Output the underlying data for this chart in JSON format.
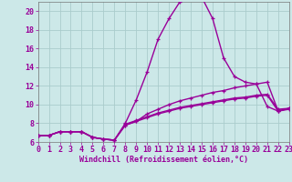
{
  "background_color": "#cce8e8",
  "grid_color": "#aacccc",
  "line_color": "#990099",
  "xlabel": "Windchill (Refroidissement éolien,°C)",
  "xlim": [
    0,
    23
  ],
  "ylim": [
    6,
    21
  ],
  "yticks": [
    6,
    8,
    10,
    12,
    14,
    16,
    18,
    20
  ],
  "xticks": [
    0,
    1,
    2,
    3,
    4,
    5,
    6,
    7,
    8,
    9,
    10,
    11,
    12,
    13,
    14,
    15,
    16,
    17,
    18,
    19,
    20,
    21,
    22,
    23
  ],
  "curve1_x": [
    0,
    1,
    2,
    3,
    4,
    5,
    6,
    7,
    8,
    9,
    10,
    11,
    12,
    13,
    14,
    15,
    16,
    17,
    18,
    19,
    20,
    21,
    22,
    23
  ],
  "curve1_y": [
    6.7,
    6.7,
    7.1,
    7.1,
    7.1,
    6.5,
    6.3,
    6.2,
    7.8,
    8.2,
    8.6,
    9.0,
    9.3,
    9.6,
    9.8,
    10.0,
    10.2,
    10.4,
    10.6,
    10.7,
    10.9,
    11.0,
    9.3,
    9.5
  ],
  "curve2_x": [
    0,
    1,
    2,
    3,
    4,
    5,
    6,
    7,
    8,
    9,
    10,
    11,
    12,
    13,
    14,
    15,
    16,
    17,
    18,
    19,
    20,
    21,
    22,
    23
  ],
  "curve2_y": [
    6.7,
    6.7,
    7.1,
    7.1,
    7.1,
    6.5,
    6.3,
    6.2,
    7.8,
    8.2,
    9.0,
    9.5,
    10.0,
    10.4,
    10.7,
    11.0,
    11.3,
    11.5,
    11.8,
    12.0,
    12.2,
    12.4,
    9.3,
    9.6
  ],
  "curve3_x": [
    0,
    1,
    2,
    3,
    4,
    5,
    6,
    7,
    8,
    9,
    10,
    11,
    12,
    13,
    14,
    15,
    16,
    17,
    18,
    19,
    20,
    21,
    22,
    23
  ],
  "curve3_y": [
    6.7,
    6.7,
    7.1,
    7.1,
    7.1,
    6.5,
    6.3,
    6.2,
    8.0,
    10.5,
    13.5,
    17.0,
    19.2,
    21.0,
    21.3,
    21.5,
    19.2,
    15.0,
    13.0,
    12.4,
    12.2,
    9.8,
    9.3,
    9.6
  ],
  "curve4_x": [
    0,
    1,
    2,
    3,
    4,
    5,
    6,
    7,
    8,
    9,
    10,
    11,
    12,
    13,
    14,
    15,
    16,
    17,
    18,
    19,
    20,
    21,
    22,
    23
  ],
  "curve4_y": [
    6.7,
    6.7,
    7.1,
    7.1,
    7.1,
    6.5,
    6.3,
    6.2,
    7.9,
    8.3,
    8.7,
    9.1,
    9.4,
    9.7,
    9.9,
    10.1,
    10.3,
    10.5,
    10.7,
    10.8,
    11.0,
    11.1,
    9.5,
    9.6
  ],
  "xlabel_fontsize": 6,
  "tick_fontsize": 6,
  "linewidth": 1.0,
  "marker_size": 3.5
}
